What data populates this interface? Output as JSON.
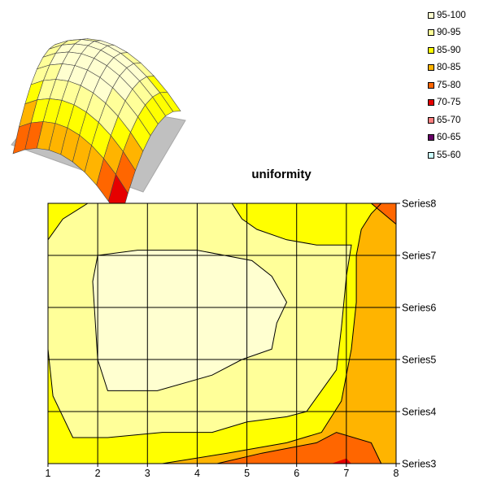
{
  "chart_data": {
    "type": "heatmap",
    "title": "uniformity",
    "x": [
      1,
      2,
      3,
      4,
      5,
      6,
      7,
      8
    ],
    "categories": [
      "Series3",
      "Series4",
      "Series5",
      "Series6",
      "Series7",
      "Series8"
    ],
    "legend": [
      {
        "label": "95-100",
        "color": "#ffffd0"
      },
      {
        "label": "90-95",
        "color": "#ffff99"
      },
      {
        "label": "85-90",
        "color": "#ffff00"
      },
      {
        "label": "80-85",
        "color": "#ffb400"
      },
      {
        "label": "75-80",
        "color": "#ff6600"
      },
      {
        "label": "70-75",
        "color": "#e60000"
      },
      {
        "label": "65-70",
        "color": "#ff8080"
      },
      {
        "label": "60-65",
        "color": "#660066"
      },
      {
        "label": "55-60",
        "color": "#ccffff"
      }
    ],
    "legend_position": "top-right",
    "grid": true,
    "zones": [
      {
        "band": "85-90",
        "color": "#ffff00",
        "points": [
          [
            1,
            3
          ],
          [
            8,
            3
          ],
          [
            8,
            8
          ],
          [
            1,
            8
          ]
        ]
      },
      {
        "band": "80-85",
        "color": "#ffb400",
        "points": [
          [
            8,
            3
          ],
          [
            3.3,
            3
          ],
          [
            4.6,
            3.2
          ],
          [
            5.8,
            3.4
          ],
          [
            6.5,
            3.6
          ],
          [
            6.9,
            4.2
          ],
          [
            7.1,
            5.2
          ],
          [
            7.2,
            6.1
          ],
          [
            7.2,
            7
          ],
          [
            7.3,
            7.5
          ],
          [
            7.5,
            7.8
          ],
          [
            7.7,
            8
          ],
          [
            8,
            8
          ]
        ]
      },
      {
        "band": "75-80",
        "color": "#ff6600",
        "points": [
          [
            8,
            3
          ],
          [
            4.4,
            3
          ],
          [
            5.3,
            3.2
          ],
          [
            6.4,
            3.4
          ],
          [
            6.8,
            3.6
          ],
          [
            7.5,
            3.4
          ],
          [
            7.7,
            3
          ],
          [
            8,
            3
          ]
        ]
      },
      {
        "band": "75-80",
        "color": "#ff6600",
        "points": [
          [
            7.5,
            8
          ],
          [
            8,
            7.6
          ],
          [
            8,
            8
          ]
        ]
      },
      {
        "band": "70-75",
        "color": "#e60000",
        "points": [
          [
            6.7,
            3
          ],
          [
            7.1,
            3
          ],
          [
            7,
            3.1
          ]
        ]
      },
      {
        "band": "90-95",
        "color": "#ffff99",
        "points": [
          [
            1,
            7.3
          ],
          [
            1.3,
            7.7
          ],
          [
            1.8,
            8
          ],
          [
            4.7,
            8
          ],
          [
            4.9,
            7.7
          ],
          [
            5.2,
            7.5
          ],
          [
            5.8,
            7.3
          ],
          [
            6.4,
            7.2
          ],
          [
            7.1,
            7.2
          ],
          [
            7,
            6.6
          ],
          [
            6.9,
            5.6
          ],
          [
            6.8,
            4.8
          ],
          [
            6.2,
            4
          ],
          [
            5.8,
            3.9
          ],
          [
            5,
            3.8
          ],
          [
            4.3,
            3.6
          ],
          [
            3.3,
            3.6
          ],
          [
            2.2,
            3.5
          ],
          [
            1.5,
            3.5
          ],
          [
            1.1,
            4.3
          ],
          [
            1,
            5.2
          ],
          [
            1,
            6.5
          ]
        ]
      },
      {
        "band": "95-100",
        "color": "#ffffd0",
        "points": [
          [
            2,
            7
          ],
          [
            2.8,
            7.1
          ],
          [
            4,
            7.1
          ],
          [
            5.1,
            6.9
          ],
          [
            5.5,
            6.6
          ],
          [
            5.8,
            6.1
          ],
          [
            5.6,
            5.7
          ],
          [
            5.5,
            5.2
          ],
          [
            4.9,
            5
          ],
          [
            4.3,
            4.7
          ],
          [
            3.2,
            4.4
          ],
          [
            2.2,
            4.4
          ],
          [
            2,
            5
          ],
          [
            1.9,
            6.5
          ]
        ]
      }
    ],
    "contours": [
      [
        [
          1,
          7.3
        ],
        [
          1.3,
          7.7
        ],
        [
          1.8,
          8
        ]
      ],
      [
        [
          4.7,
          8
        ],
        [
          4.9,
          7.7
        ],
        [
          5.2,
          7.5
        ],
        [
          5.8,
          7.3
        ],
        [
          6.4,
          7.2
        ],
        [
          7.1,
          7.2
        ],
        [
          7,
          6.6
        ],
        [
          6.9,
          5.6
        ],
        [
          6.8,
          4.8
        ],
        [
          6.2,
          4
        ],
        [
          5.8,
          3.9
        ],
        [
          5,
          3.8
        ],
        [
          4.3,
          3.6
        ],
        [
          3.3,
          3.6
        ],
        [
          2.2,
          3.5
        ],
        [
          1.5,
          3.5
        ],
        [
          1.1,
          4.3
        ],
        [
          1,
          5.2
        ]
      ],
      [
        [
          2,
          7
        ],
        [
          2.8,
          7.1
        ],
        [
          4,
          7.1
        ],
        [
          5.1,
          6.9
        ],
        [
          5.5,
          6.6
        ],
        [
          5.8,
          6.1
        ],
        [
          5.6,
          5.7
        ],
        [
          5.5,
          5.2
        ],
        [
          4.9,
          5
        ],
        [
          4.3,
          4.7
        ],
        [
          3.2,
          4.4
        ],
        [
          2.2,
          4.4
        ],
        [
          2,
          5
        ],
        [
          1.9,
          6.5
        ],
        [
          2,
          7
        ]
      ],
      [
        [
          3.3,
          3
        ],
        [
          4.6,
          3.2
        ],
        [
          5.8,
          3.4
        ],
        [
          6.5,
          3.6
        ],
        [
          6.9,
          4.2
        ],
        [
          7.1,
          5.2
        ],
        [
          7.2,
          6.1
        ],
        [
          7.2,
          7
        ],
        [
          7.3,
          7.5
        ],
        [
          7.5,
          7.8
        ],
        [
          7.7,
          8
        ]
      ],
      [
        [
          4.4,
          3
        ],
        [
          5.3,
          3.2
        ],
        [
          6.4,
          3.4
        ],
        [
          6.8,
          3.6
        ],
        [
          7.5,
          3.4
        ],
        [
          7.7,
          3
        ]
      ],
      [
        [
          7.5,
          8
        ],
        [
          8,
          7.6
        ]
      ]
    ],
    "surface": {
      "rows": 8,
      "cols": 9,
      "center_row": 2.8,
      "center_col": 4.2,
      "base": 100,
      "falloff": 0.55
    }
  }
}
